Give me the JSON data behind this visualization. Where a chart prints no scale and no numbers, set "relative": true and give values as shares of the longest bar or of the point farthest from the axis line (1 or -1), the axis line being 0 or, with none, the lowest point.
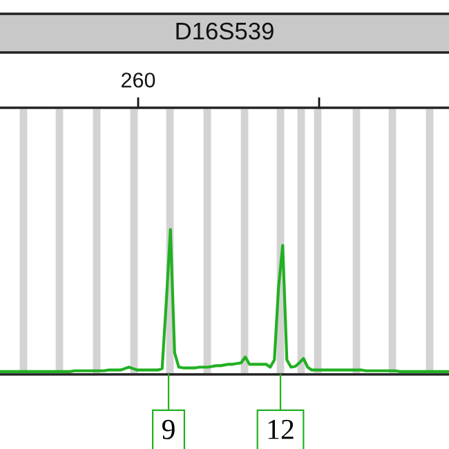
{
  "chart_data": {
    "type": "line",
    "title": "D16S539",
    "relative": true,
    "categories": [
      null,
      null,
      null,
      null,
      null,
      null,
      null,
      null,
      null,
      null,
      null,
      null,
      null,
      null,
      null,
      null,
      null,
      null,
      null,
      null,
      null,
      null,
      null,
      null,
      null,
      null,
      null,
      null,
      null,
      null,
      null,
      null,
      null,
      null,
      null,
      null,
      null,
      null,
      null,
      null,
      null,
      null,
      null,
      null,
      null,
      null,
      null,
      null,
      null,
      null,
      null,
      null,
      null,
      null,
      null,
      null,
      null,
      null,
      null,
      null,
      null,
      null,
      null,
      null,
      null,
      null,
      null,
      null,
      null,
      null,
      null,
      null,
      null,
      null,
      null,
      null,
      null,
      null,
      null,
      null,
      null,
      null,
      null,
      null,
      null,
      null,
      null,
      null,
      null,
      null,
      null,
      null,
      null,
      null,
      null,
      null,
      null,
      null,
      null,
      null,
      null,
      null,
      null,
      null,
      null,
      null,
      null,
      null,
      null
    ],
    "series": [
      {
        "color": "#22b022",
        "values": [
          0.02,
          0.02,
          0.02,
          0.02,
          0.02,
          0.02,
          0.02,
          0.02,
          0.02,
          0.02,
          0.02,
          0.02,
          0.02,
          0.02,
          0.02,
          0.02,
          0.02,
          0.02,
          0.025,
          0.025,
          0.025,
          0.025,
          0.025,
          0.025,
          0.025,
          0.025,
          0.03,
          0.03,
          0.03,
          0.03,
          0.04,
          0.05,
          0.04,
          0.03,
          0.03,
          0.03,
          0.03,
          0.03,
          0.03,
          0.04,
          0.5,
          1.0,
          0.15,
          0.05,
          0.045,
          0.045,
          0.045,
          0.045,
          0.05,
          0.05,
          0.05,
          0.055,
          0.06,
          0.06,
          0.065,
          0.07,
          0.07,
          0.075,
          0.08,
          0.12,
          0.07,
          0.07,
          0.07,
          0.07,
          0.07,
          0.05,
          0.1,
          0.6,
          0.89,
          0.1,
          0.05,
          0.055,
          0.08,
          0.11,
          0.05,
          0.03,
          0.03,
          0.03,
          0.03,
          0.03,
          0.03,
          0.03,
          0.03,
          0.03,
          0.03,
          0.03,
          0.03,
          0.03,
          0.025,
          0.025,
          0.025,
          0.025,
          0.025,
          0.025,
          0.025,
          0.025,
          0.02,
          0.02,
          0.02,
          0.02,
          0.02,
          0.02,
          0.02,
          0.02,
          0.02,
          0.02,
          0.02,
          0.02,
          0.02
        ]
      }
    ],
    "annotations": [
      "260",
      "9",
      "12"
    ],
    "marker": "none",
    "line_style": "solid"
  }
}
